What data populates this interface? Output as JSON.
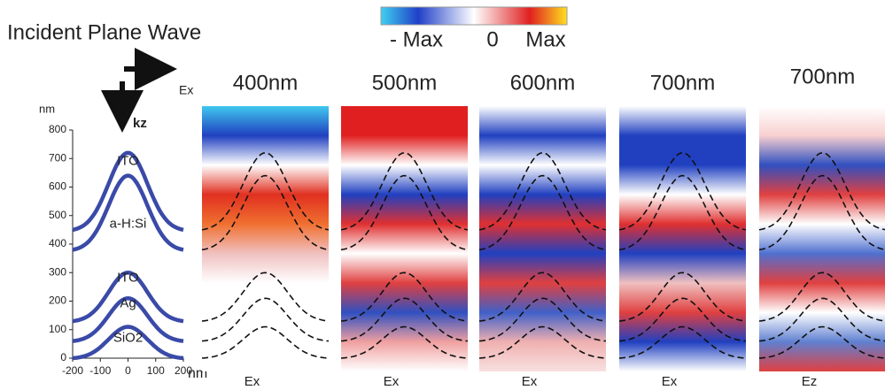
{
  "title": "Incident Plane Wave",
  "colorbar": {
    "min_label": "- Max",
    "mid_label": "0",
    "max_label": "Max"
  },
  "incidence": {
    "polarization": "Ex",
    "wavevector": "kz"
  },
  "profile": {
    "y_unit": "nm",
    "x_unit": "nm",
    "xlim": [
      -200,
      200
    ],
    "ylim": [
      0,
      800
    ],
    "xticks": [
      -200,
      -100,
      0,
      100,
      200
    ],
    "yticks": [
      0,
      100,
      200,
      300,
      400,
      500,
      600,
      700,
      800
    ],
    "layers": [
      "ITO",
      "a-H:Si",
      "ITO",
      "Ag",
      "SiO2"
    ]
  },
  "panels": [
    {
      "wavelength": "400nm",
      "component": "Ex"
    },
    {
      "wavelength": "500nm",
      "component": "Ex"
    },
    {
      "wavelength": "600nm",
      "component": "Ex"
    },
    {
      "wavelength": "700nm",
      "component": "Ex"
    },
    {
      "wavelength": "700nm",
      "component": "Ez"
    }
  ]
}
